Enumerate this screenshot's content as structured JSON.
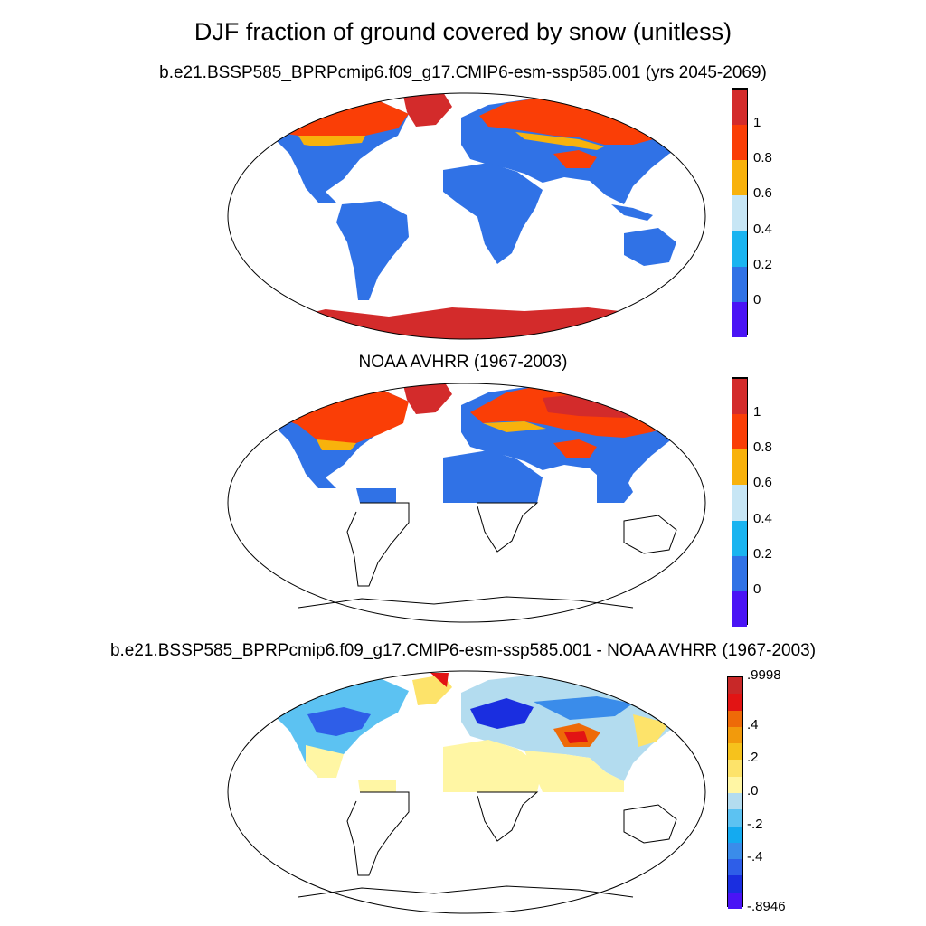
{
  "title": "DJF fraction of ground covered by snow (unitless)",
  "panels": [
    {
      "title": "b.e21.BSSP585_BPRPcmip6.f09_g17.CMIP6-esm-ssp585.001 (yrs 2045-2069)",
      "colorbar": {
        "colors": [
          "#4a14f5",
          "#3072e6",
          "#1ab4f0",
          "#c7e6f5",
          "#f8b20c",
          "#fa3e06",
          "#d32b2b"
        ],
        "labels": [
          "0",
          "0.2",
          "0.4",
          "0.6",
          "0.8",
          "1"
        ]
      }
    },
    {
      "title": "NOAA AVHRR (1967-2003)",
      "colorbar": {
        "colors": [
          "#4a14f5",
          "#3072e6",
          "#1ab4f0",
          "#c7e6f5",
          "#f8b20c",
          "#fa3e06",
          "#d32b2b"
        ],
        "labels": [
          "0",
          "0.2",
          "0.4",
          "0.6",
          "0.8",
          "1"
        ]
      }
    },
    {
      "title": "b.e21.BSSP585_BPRPcmip6.f09_g17.CMIP6-esm-ssp585.001 - NOAA AVHRR (1967-2003)",
      "colorbar": {
        "colors": [
          "#4a14f5",
          "#1a2ee0",
          "#2e5ee8",
          "#3a8cea",
          "#14aaf0",
          "#5cc2f2",
          "#b3dcef",
          "#fff6a4",
          "#fde36a",
          "#f6c21c",
          "#f29a0c",
          "#ee6a08",
          "#e21414",
          "#c82828"
        ],
        "labels": [
          ".9998",
          ".4",
          ".2",
          ".0",
          "-.2",
          "-.4",
          "-.8946"
        ]
      }
    }
  ]
}
